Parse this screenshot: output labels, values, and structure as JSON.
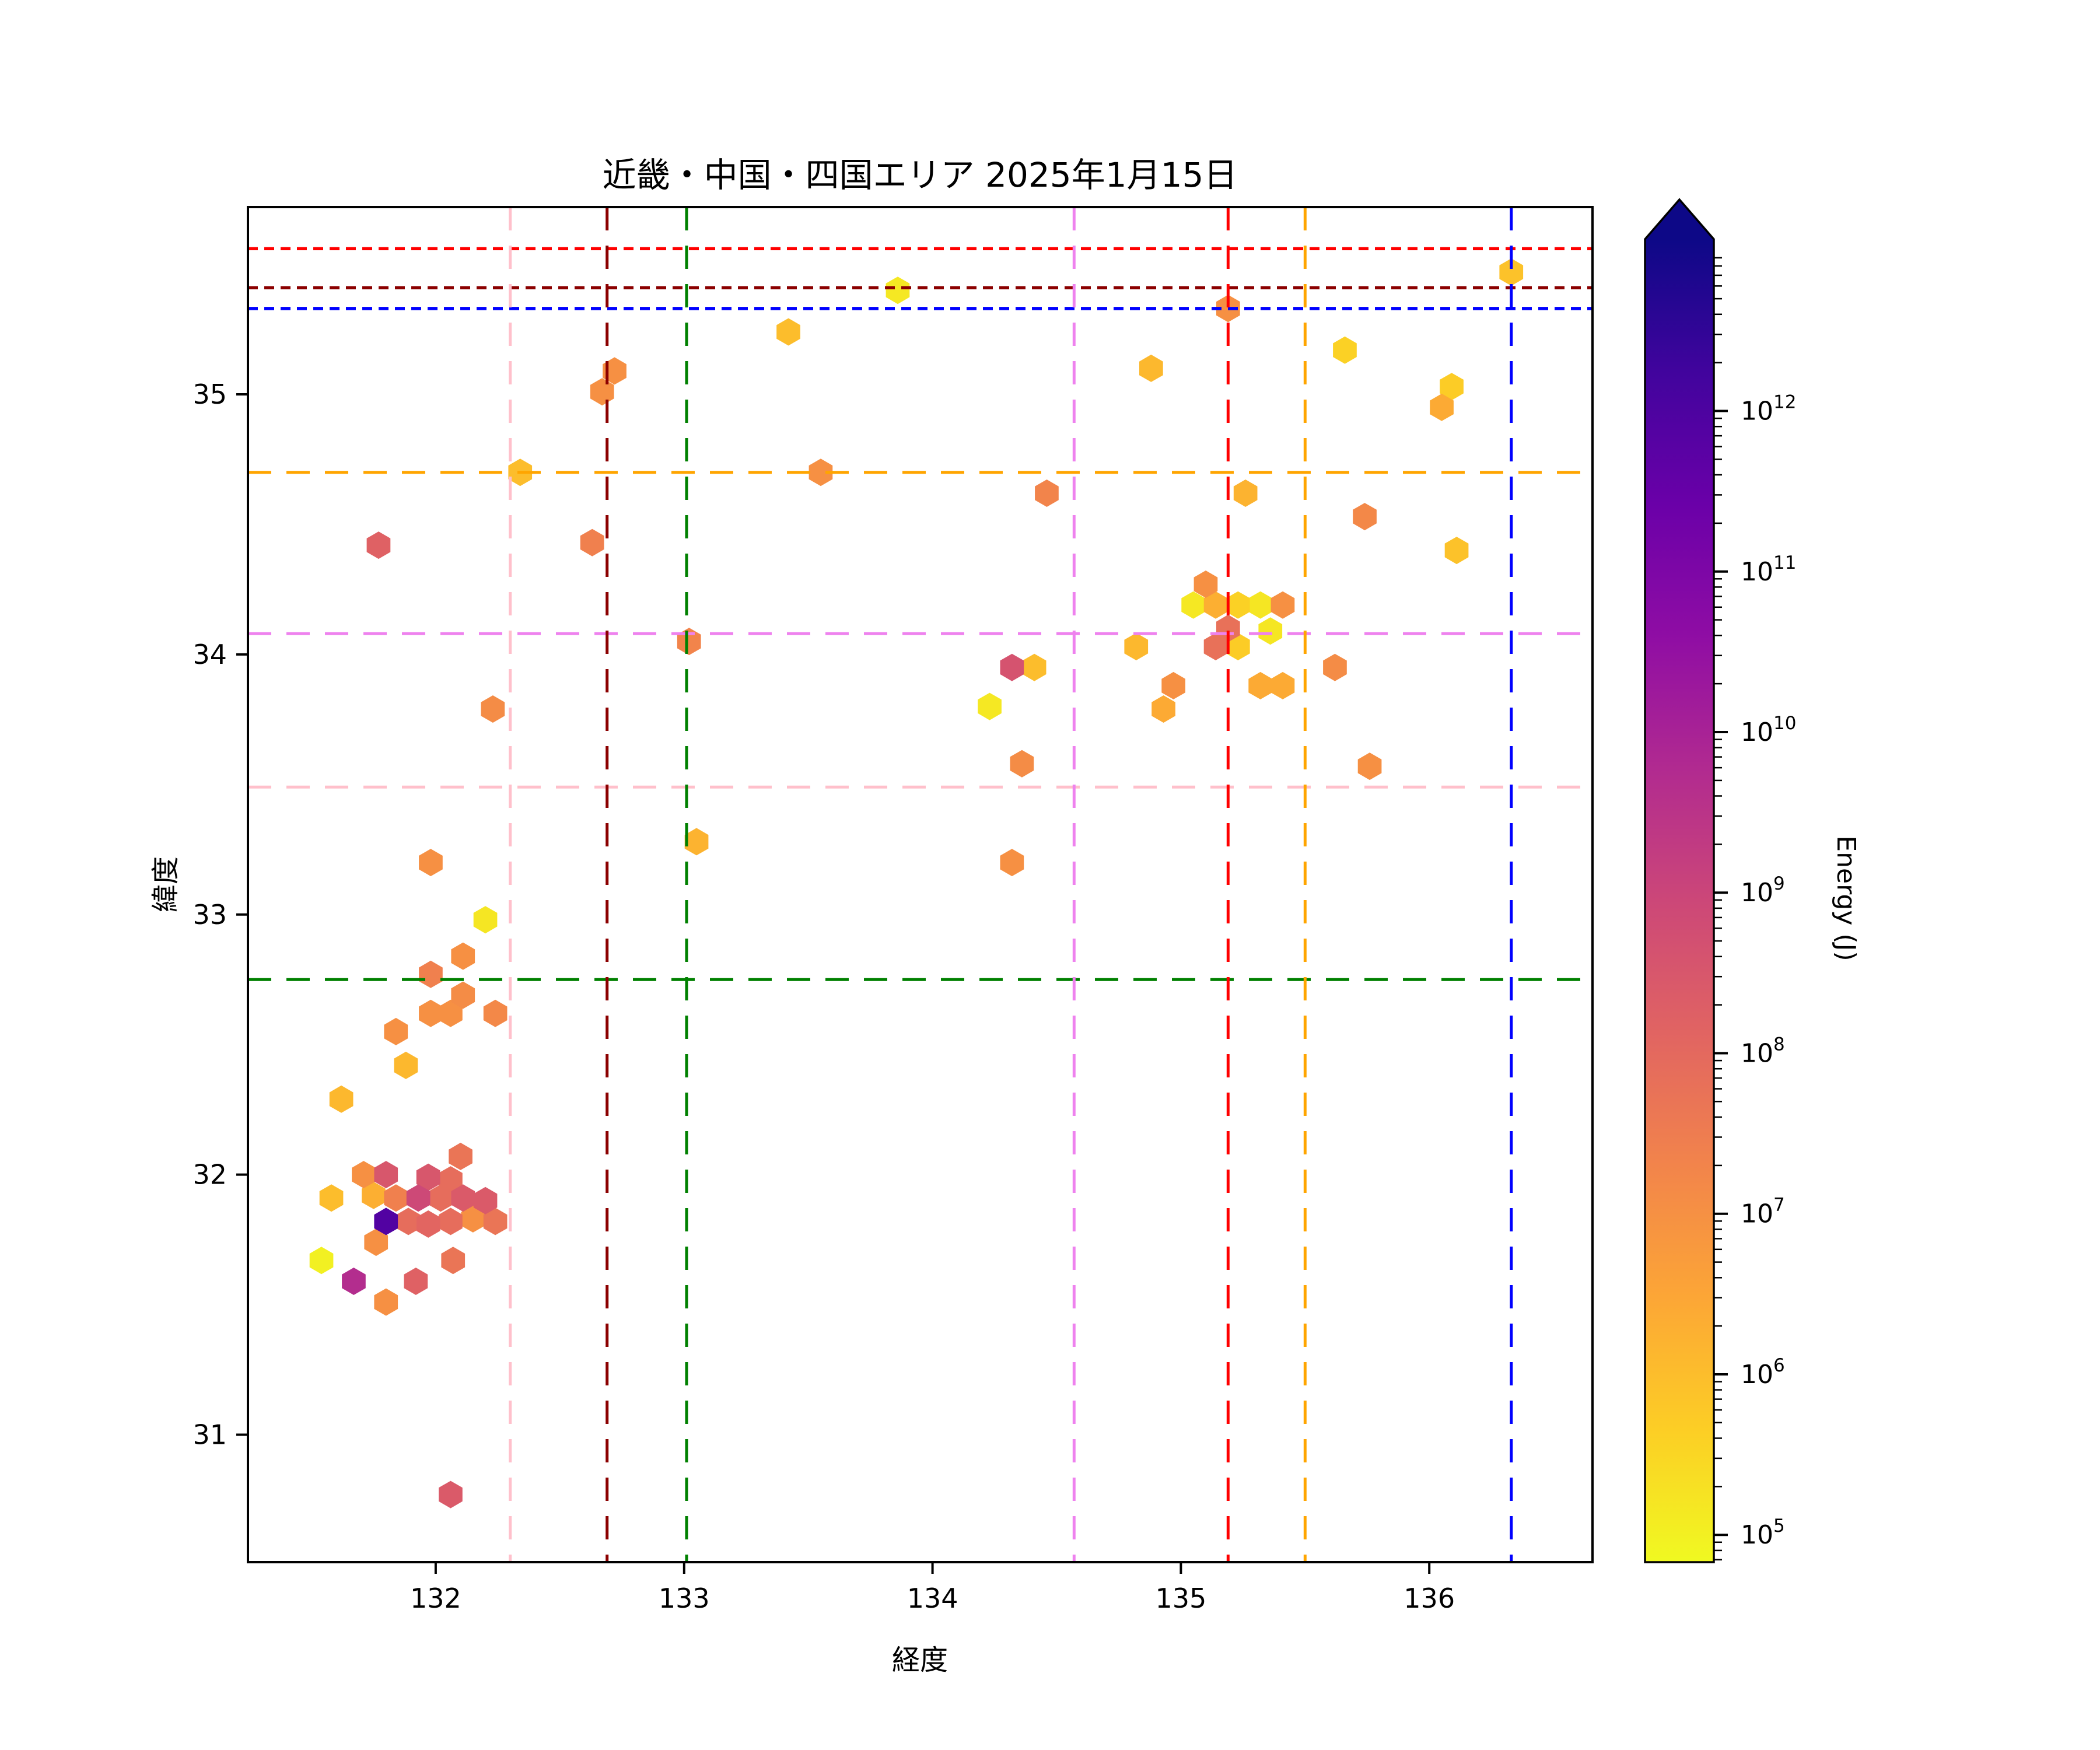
{
  "title": "近畿・中国・四国エリア 2025年1月15日",
  "axes": {
    "xlabel": "経度",
    "ylabel": "緯度",
    "xticks": [
      132,
      133,
      134,
      135,
      136
    ],
    "yticks": [
      31,
      32,
      33,
      34,
      35
    ],
    "xlim": [
      131.244,
      136.657
    ],
    "ylim": [
      30.51,
      35.72
    ]
  },
  "colorbar": {
    "label": "Energy (J)",
    "tick_exponents": [
      5,
      6,
      7,
      8,
      9,
      10,
      11,
      12
    ],
    "log_min": 4.83,
    "log_max": 13.07,
    "extend": "max",
    "colormap_stops": [
      "#0d0887",
      "#41049d",
      "#6a00a8",
      "#8f0da4",
      "#b12a90",
      "#cc4778",
      "#e16462",
      "#f2844b",
      "#fca636",
      "#fcce25",
      "#f0f921"
    ]
  },
  "reference_lines": {
    "horizontal": [
      {
        "color": "#ff0000",
        "lat": 35.56
      },
      {
        "color": "#8b0000",
        "lat": 35.41
      },
      {
        "color": "#0000ff",
        "lat": 35.33
      },
      {
        "color": "#ffa500",
        "lat": 34.7
      },
      {
        "color": "#ee82ee",
        "lat": 34.08
      },
      {
        "color": "#ffc0cb",
        "lat": 33.49
      },
      {
        "color": "#008000",
        "lat": 32.75
      }
    ],
    "vertical": [
      {
        "color": "#ffc0cb",
        "lon": 132.3
      },
      {
        "color": "#8b0000",
        "lon": 132.69
      },
      {
        "color": "#008000",
        "lon": 133.01
      },
      {
        "color": "#ee82ee",
        "lon": 134.57
      },
      {
        "color": "#ff0000",
        "lon": 135.19
      },
      {
        "color": "#ffa500",
        "lon": 135.5
      },
      {
        "color": "#0000ff",
        "lon": 136.33
      }
    ]
  },
  "chart_data": {
    "type": "scatter",
    "marker": "hexagon",
    "x_name": "経度 (longitude, deg E)",
    "y_name": "緯度 (latitude, deg N)",
    "color_scale": "log10 Energy (J), plasma reversed (yellow=low, dark blue=high)",
    "points": [
      {
        "lon": 133.86,
        "lat": 35.4,
        "logE": 5.15
      },
      {
        "lon": 135.19,
        "lat": 35.33,
        "logE": 7.0
      },
      {
        "lon": 136.33,
        "lat": 35.47,
        "logE": 5.9
      },
      {
        "lon": 133.42,
        "lat": 35.24,
        "logE": 6.0
      },
      {
        "lon": 134.88,
        "lat": 35.1,
        "logE": 6.1
      },
      {
        "lon": 135.66,
        "lat": 35.17,
        "logE": 5.6
      },
      {
        "lon": 132.72,
        "lat": 35.09,
        "logE": 7.0
      },
      {
        "lon": 132.67,
        "lat": 35.01,
        "logE": 7.0
      },
      {
        "lon": 136.09,
        "lat": 35.03,
        "logE": 5.7
      },
      {
        "lon": 136.05,
        "lat": 34.95,
        "logE": 6.4
      },
      {
        "lon": 132.34,
        "lat": 34.7,
        "logE": 6.0
      },
      {
        "lon": 133.55,
        "lat": 34.7,
        "logE": 7.0
      },
      {
        "lon": 134.46,
        "lat": 34.62,
        "logE": 7.3
      },
      {
        "lon": 135.26,
        "lat": 34.62,
        "logE": 6.2
      },
      {
        "lon": 135.74,
        "lat": 34.53,
        "logE": 7.2
      },
      {
        "lon": 131.77,
        "lat": 34.42,
        "logE": 8.2
      },
      {
        "lon": 132.63,
        "lat": 34.43,
        "logE": 7.4
      },
      {
        "lon": 136.11,
        "lat": 34.4,
        "logE": 5.9
      },
      {
        "lon": 133.02,
        "lat": 34.05,
        "logE": 7.3
      },
      {
        "lon": 135.1,
        "lat": 34.27,
        "logE": 7.0
      },
      {
        "lon": 135.05,
        "lat": 34.19,
        "logE": 5.15
      },
      {
        "lon": 135.14,
        "lat": 34.19,
        "logE": 6.3
      },
      {
        "lon": 135.23,
        "lat": 34.19,
        "logE": 5.6
      },
      {
        "lon": 135.32,
        "lat": 34.19,
        "logE": 5.2
      },
      {
        "lon": 135.41,
        "lat": 34.19,
        "logE": 7.0
      },
      {
        "lon": 135.19,
        "lat": 34.1,
        "logE": 7.8
      },
      {
        "lon": 135.36,
        "lat": 34.09,
        "logE": 5.2
      },
      {
        "lon": 135.14,
        "lat": 34.03,
        "logE": 7.8
      },
      {
        "lon": 135.23,
        "lat": 34.03,
        "logE": 5.7
      },
      {
        "lon": 134.82,
        "lat": 34.03,
        "logE": 6.1
      },
      {
        "lon": 135.62,
        "lat": 33.95,
        "logE": 7.1
      },
      {
        "lon": 134.97,
        "lat": 33.88,
        "logE": 7.0
      },
      {
        "lon": 134.93,
        "lat": 33.79,
        "logE": 6.4
      },
      {
        "lon": 135.32,
        "lat": 33.88,
        "logE": 6.4
      },
      {
        "lon": 135.41,
        "lat": 33.88,
        "logE": 6.4
      },
      {
        "lon": 135.76,
        "lat": 33.57,
        "logE": 7.0
      },
      {
        "lon": 134.32,
        "lat": 33.95,
        "logE": 8.6
      },
      {
        "lon": 134.41,
        "lat": 33.95,
        "logE": 6.0
      },
      {
        "lon": 134.23,
        "lat": 33.8,
        "logE": 5.15
      },
      {
        "lon": 134.36,
        "lat": 33.58,
        "logE": 7.1
      },
      {
        "lon": 134.32,
        "lat": 33.2,
        "logE": 7.0
      },
      {
        "lon": 133.05,
        "lat": 33.28,
        "logE": 6.2
      },
      {
        "lon": 132.23,
        "lat": 33.79,
        "logE": 7.1
      },
      {
        "lon": 131.98,
        "lat": 33.2,
        "logE": 7.0
      },
      {
        "lon": 132.2,
        "lat": 32.98,
        "logE": 5.2
      },
      {
        "lon": 132.11,
        "lat": 32.84,
        "logE": 7.0
      },
      {
        "lon": 131.98,
        "lat": 32.77,
        "logE": 7.4
      },
      {
        "lon": 132.11,
        "lat": 32.69,
        "logE": 7.1
      },
      {
        "lon": 131.98,
        "lat": 32.62,
        "logE": 7.0
      },
      {
        "lon": 132.06,
        "lat": 32.62,
        "logE": 7.0
      },
      {
        "lon": 132.24,
        "lat": 32.62,
        "logE": 7.2
      },
      {
        "lon": 131.84,
        "lat": 32.55,
        "logE": 7.0
      },
      {
        "lon": 131.88,
        "lat": 32.42,
        "logE": 6.1
      },
      {
        "lon": 131.62,
        "lat": 32.29,
        "logE": 6.1
      },
      {
        "lon": 132.1,
        "lat": 32.07,
        "logE": 7.7
      },
      {
        "lon": 131.71,
        "lat": 32.0,
        "logE": 7.0
      },
      {
        "lon": 131.8,
        "lat": 32.0,
        "logE": 8.5
      },
      {
        "lon": 131.97,
        "lat": 31.99,
        "logE": 8.5
      },
      {
        "lon": 132.06,
        "lat": 31.98,
        "logE": 7.9
      },
      {
        "lon": 131.58,
        "lat": 31.91,
        "logE": 6.0
      },
      {
        "lon": 131.75,
        "lat": 31.92,
        "logE": 6.3
      },
      {
        "lon": 131.84,
        "lat": 31.91,
        "logE": 7.4
      },
      {
        "lon": 131.93,
        "lat": 31.91,
        "logE": 8.9
      },
      {
        "lon": 132.02,
        "lat": 31.91,
        "logE": 7.9
      },
      {
        "lon": 132.11,
        "lat": 31.91,
        "logE": 8.4
      },
      {
        "lon": 132.2,
        "lat": 31.9,
        "logE": 8.4
      },
      {
        "lon": 131.8,
        "lat": 31.82,
        "logE": 11.9
      },
      {
        "lon": 131.89,
        "lat": 31.82,
        "logE": 7.9
      },
      {
        "lon": 131.97,
        "lat": 31.81,
        "logE": 8.1
      },
      {
        "lon": 132.06,
        "lat": 31.82,
        "logE": 7.9
      },
      {
        "lon": 132.15,
        "lat": 31.83,
        "logE": 7.0
      },
      {
        "lon": 132.24,
        "lat": 31.82,
        "logE": 7.7
      },
      {
        "lon": 131.76,
        "lat": 31.74,
        "logE": 7.0
      },
      {
        "lon": 131.54,
        "lat": 31.67,
        "logE": 5.0
      },
      {
        "lon": 132.07,
        "lat": 31.67,
        "logE": 7.7
      },
      {
        "lon": 131.67,
        "lat": 31.59,
        "logE": 9.7
      },
      {
        "lon": 131.92,
        "lat": 31.59,
        "logE": 8.2
      },
      {
        "lon": 131.8,
        "lat": 31.51,
        "logE": 7.0
      },
      {
        "lon": 132.06,
        "lat": 30.77,
        "logE": 8.4
      }
    ]
  }
}
